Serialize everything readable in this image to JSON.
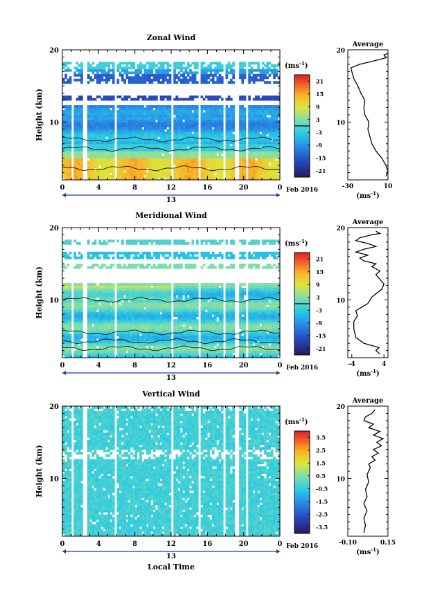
{
  "figure": {
    "xlabel": "Local Time",
    "date_label": "Feb 2016",
    "day_label": "13",
    "x_ticks": [
      "0",
      "4",
      "8",
      "12",
      "16",
      "20",
      "0"
    ]
  },
  "chart_data": [
    {
      "type": "heatmap",
      "title": "Zonal Wind",
      "ylabel": "Height (km)",
      "xlim": [
        0,
        24
      ],
      "ylim": [
        2,
        20
      ],
      "y_ticks": [
        "10",
        "20"
      ],
      "colorbar": {
        "unit": "(ms",
        "unit_sup": "-1",
        "unit_close": ")",
        "ticks": [
          "21",
          "15",
          "9",
          "3",
          "-3",
          "-9",
          "-15",
          "-21"
        ],
        "range": [
          -24,
          24
        ],
        "contour_at": 0
      },
      "profile": {
        "title": "Average",
        "xlim": [
          -30,
          10
        ],
        "x_ticks": [
          "-30",
          "10"
        ],
        "y_ticks": [
          "10",
          "20"
        ],
        "xlabel": "(ms",
        "xlabel_sup": "-1",
        "xlabel_close": ")",
        "points": [
          [
            8,
            2.5
          ],
          [
            10,
            3.2
          ],
          [
            8,
            4.0
          ],
          [
            4,
            5.0
          ],
          [
            -2,
            6.0
          ],
          [
            -6,
            7.0
          ],
          [
            -8,
            8.0
          ],
          [
            -10,
            9.0
          ],
          [
            -9,
            10.0
          ],
          [
            -13,
            11.0
          ],
          [
            -14,
            12.0
          ],
          [
            -13,
            13.0
          ],
          [
            -17,
            14.0
          ],
          [
            -20,
            15.0
          ],
          [
            -24,
            16.0
          ],
          [
            -26,
            17.0
          ],
          [
            -27,
            17.5
          ],
          [
            -18,
            18.0
          ],
          [
            -6,
            18.4
          ],
          [
            8,
            18.9
          ],
          [
            6,
            19.3
          ],
          [
            10,
            19.5
          ]
        ]
      }
    },
    {
      "type": "heatmap",
      "title": "Meridional Wind",
      "ylabel": "Height (km)",
      "xlim": [
        0,
        24
      ],
      "ylim": [
        2,
        20
      ],
      "y_ticks": [
        "10",
        "20"
      ],
      "colorbar": {
        "unit": "(ms",
        "unit_sup": "-1",
        "unit_close": ")",
        "ticks": [
          "21",
          "15",
          "9",
          "3",
          "-3",
          "-9",
          "-15",
          "-21"
        ],
        "range": [
          -24,
          24
        ],
        "contour_at": 0
      },
      "profile": {
        "title": "Average",
        "xlim": [
          -5,
          5
        ],
        "x_ticks": [
          "-4",
          "4"
        ],
        "y_ticks": [
          "10",
          "20"
        ],
        "xlabel": "(ms",
        "xlabel_sup": "-1",
        "xlabel_close": ")",
        "points": [
          [
            3,
            2.5
          ],
          [
            2,
            3.0
          ],
          [
            2.8,
            3.4
          ],
          [
            -1,
            4.0
          ],
          [
            -3,
            4.8
          ],
          [
            -3.5,
            6.0
          ],
          [
            -3.5,
            7.0
          ],
          [
            -2.6,
            7.8
          ],
          [
            -3,
            8.5
          ],
          [
            0,
            9.5
          ],
          [
            1,
            10.4
          ],
          [
            3.5,
            11.5
          ],
          [
            4,
            12.2
          ],
          [
            2,
            13.5
          ],
          [
            3,
            14.0
          ],
          [
            1,
            14.6
          ],
          [
            2,
            15.0
          ],
          [
            -1,
            15.4
          ],
          [
            -2,
            15.8
          ],
          [
            0,
            16.2
          ],
          [
            -3,
            16.6
          ],
          [
            -1,
            17.0
          ],
          [
            2,
            17.4
          ],
          [
            0,
            17.8
          ],
          [
            -3,
            18.2
          ],
          [
            -2,
            18.6
          ],
          [
            1,
            19.0
          ],
          [
            3,
            19.2
          ],
          [
            2,
            19.5
          ]
        ]
      }
    },
    {
      "type": "heatmap",
      "title": "Vertical Wind",
      "ylabel": "Height (km)",
      "xlim": [
        0,
        24
      ],
      "ylim": [
        2,
        20
      ],
      "y_ticks": [
        "10",
        "20"
      ],
      "colorbar": {
        "unit": "(ms",
        "unit_sup": "-1",
        "unit_close": ")",
        "ticks": [
          "3.5",
          "2.5",
          "1.5",
          "0.5",
          "-0.5",
          "-1.5",
          "-2.5",
          "-3.5"
        ],
        "range": [
          -4,
          4
        ],
        "contour_at": null
      },
      "profile": {
        "title": "Average",
        "xlim": [
          -0.1,
          0.15
        ],
        "x_ticks": [
          "-0.10",
          "0.15"
        ],
        "y_ticks": [
          "10",
          "20"
        ],
        "xlabel": "(ms",
        "xlabel_sup": "-1",
        "xlabel_close": ")",
        "points": [
          [
            0.0,
            2.5
          ],
          [
            0.01,
            3.5
          ],
          [
            0.0,
            4.5
          ],
          [
            0.02,
            5.5
          ],
          [
            0.0,
            6.5
          ],
          [
            0.02,
            7.5
          ],
          [
            0.01,
            8.5
          ],
          [
            0.03,
            9.5
          ],
          [
            0.02,
            10.5
          ],
          [
            0.04,
            11.5
          ],
          [
            0.03,
            12.0
          ],
          [
            0.07,
            12.5
          ],
          [
            0.05,
            13.0
          ],
          [
            0.09,
            13.5
          ],
          [
            0.06,
            14.0
          ],
          [
            0.11,
            14.5
          ],
          [
            0.08,
            15.0
          ],
          [
            0.12,
            15.5
          ],
          [
            0.06,
            16.0
          ],
          [
            0.1,
            16.5
          ],
          [
            0.03,
            17.0
          ],
          [
            0.06,
            17.5
          ],
          [
            0.0,
            18.0
          ],
          [
            0.01,
            18.5
          ],
          [
            0.05,
            19.0
          ],
          [
            0.07,
            19.5
          ]
        ]
      }
    }
  ],
  "colors": {
    "frame": "#000000",
    "missing": "#ffffff"
  }
}
